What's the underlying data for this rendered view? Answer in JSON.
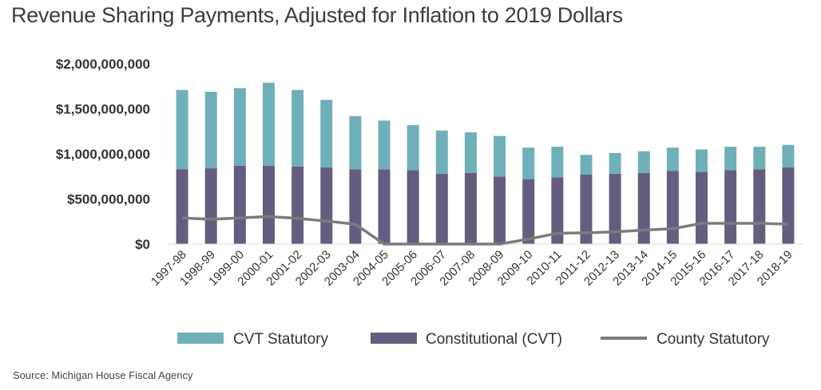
{
  "title": "Revenue Sharing Payments, Adjusted for Inflation to 2019 Dollars",
  "source": "Source: Michigan House Fiscal Agency",
  "colors": {
    "cvt": "#6fb0b8",
    "constitutional": "#645d80",
    "county": "#7c7c7c",
    "axis": "#d9d9d9"
  },
  "chart_data": {
    "type": "bar",
    "stacked": true,
    "title": "Revenue Sharing Payments, Adjusted for Inflation to 2019 Dollars",
    "xlabel": "",
    "ylabel": "",
    "ylim": [
      0,
      2000000000
    ],
    "yticks": [
      0,
      500000000,
      1000000000,
      1500000000,
      2000000000
    ],
    "ytick_labels": [
      "$0",
      "$500,000,000",
      "$1,000,000,000",
      "$1,500,000,000",
      "$2,000,000,000"
    ],
    "grid": false,
    "legend": "bottom",
    "categories": [
      "1997-98",
      "1998-99",
      "1999-00",
      "2000-01",
      "2001-02",
      "2002-03",
      "2003-04",
      "2004-05",
      "2005-06",
      "2006-07",
      "2007-08",
      "2008-09",
      "2009-10",
      "2010-11",
      "2011-12",
      "2012-13",
      "2013-14",
      "2014-15",
      "2015-16",
      "2016-17",
      "2017-18",
      "2018-19"
    ],
    "series": [
      {
        "name": "Constitutional (CVT)",
        "type": "bar",
        "values": [
          830000000,
          840000000,
          870000000,
          870000000,
          860000000,
          850000000,
          830000000,
          830000000,
          820000000,
          780000000,
          790000000,
          750000000,
          720000000,
          740000000,
          770000000,
          780000000,
          790000000,
          810000000,
          800000000,
          820000000,
          830000000,
          850000000
        ]
      },
      {
        "name": "CVT Statutory",
        "type": "bar",
        "values": [
          880000000,
          850000000,
          860000000,
          920000000,
          850000000,
          750000000,
          590000000,
          540000000,
          500000000,
          480000000,
          450000000,
          450000000,
          350000000,
          340000000,
          220000000,
          230000000,
          240000000,
          260000000,
          250000000,
          260000000,
          250000000,
          250000000
        ]
      },
      {
        "name": "County Statutory",
        "type": "line",
        "values": [
          290000000,
          275000000,
          290000000,
          305000000,
          285000000,
          255000000,
          220000000,
          0,
          0,
          0,
          0,
          0,
          55000000,
          120000000,
          125000000,
          135000000,
          155000000,
          170000000,
          230000000,
          230000000,
          230000000,
          220000000
        ]
      }
    ]
  }
}
